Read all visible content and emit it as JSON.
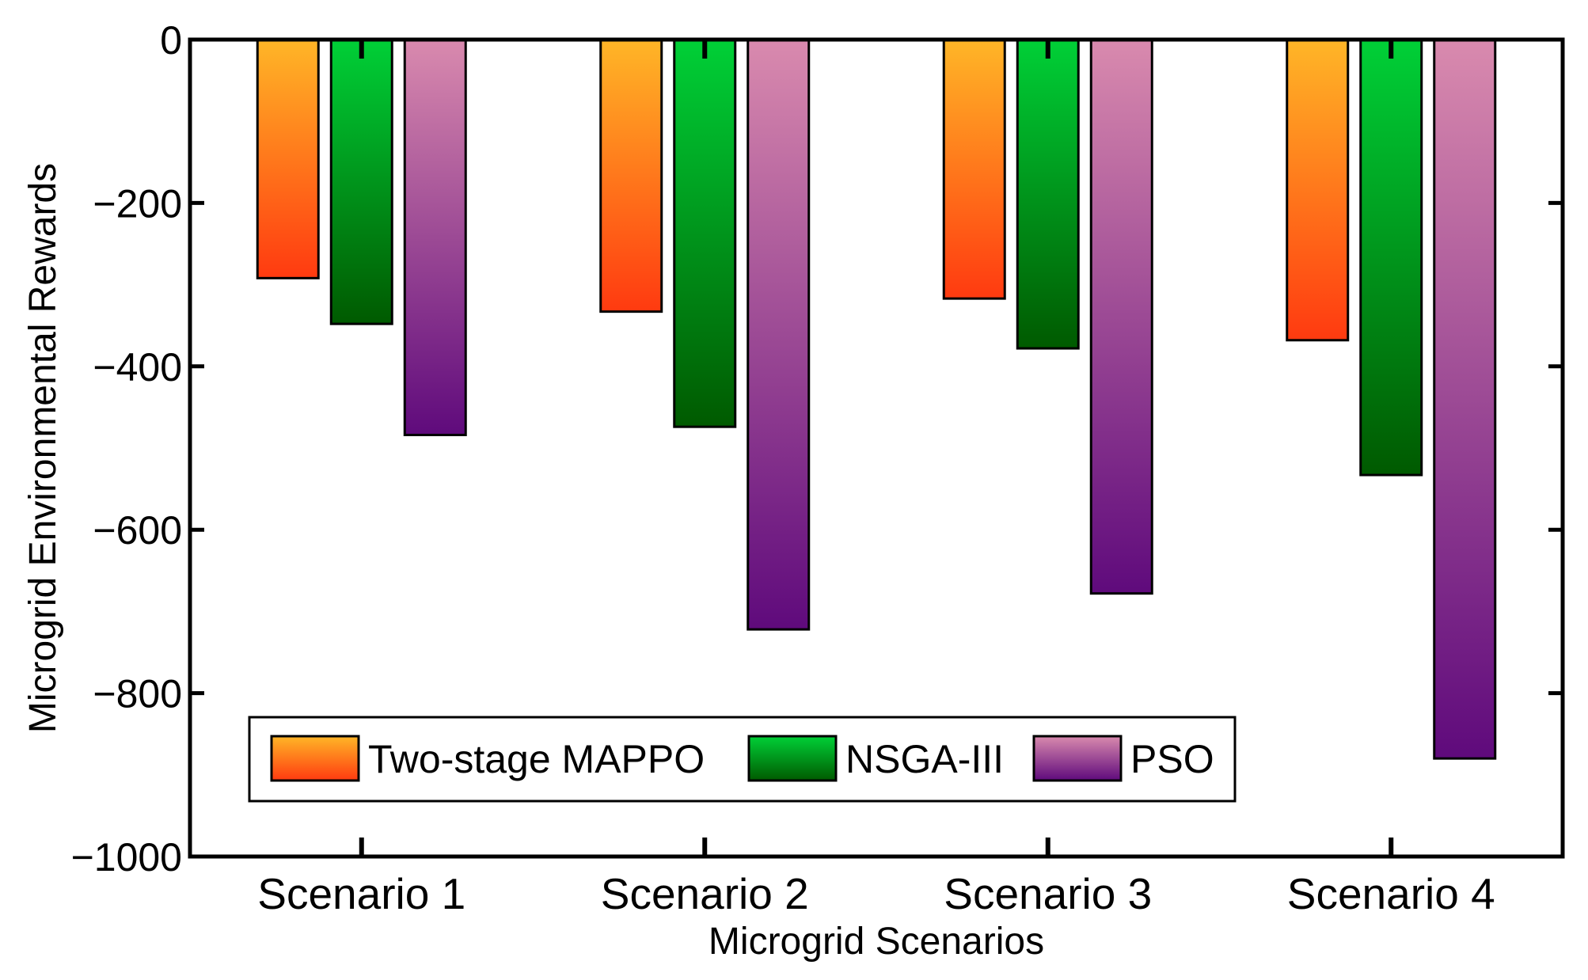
{
  "chart_data": {
    "type": "bar",
    "title": "",
    "xlabel": "Microgrid Scenarios",
    "ylabel": "Microgrid Environmental Rewards",
    "ylim": [
      -1000,
      0
    ],
    "yticks": [
      0,
      -200,
      -400,
      -600,
      -800,
      -1000
    ],
    "ytick_labels": [
      "0",
      "−200",
      "−400",
      "−600",
      "−800",
      "−1000"
    ],
    "grid": false,
    "legend_position": "bottom-left",
    "categories": [
      "Scenario 1",
      "Scenario 2",
      "Scenario 3",
      "Scenario 4"
    ],
    "series": [
      {
        "name": "Two-stage MAPPO",
        "values": [
          -292,
          -333,
          -317,
          -368
        ],
        "color_top": "#ffb627",
        "color_bottom": "#ff3a10"
      },
      {
        "name": "NSGA-III",
        "values": [
          -348,
          -474,
          -378,
          -533
        ],
        "color_top": "#00d037",
        "color_bottom": "#005a00"
      },
      {
        "name": "PSO",
        "values": [
          -484,
          -722,
          -678,
          -880
        ],
        "color_top": "#d98aae",
        "color_bottom": "#5f0a7c"
      }
    ]
  }
}
